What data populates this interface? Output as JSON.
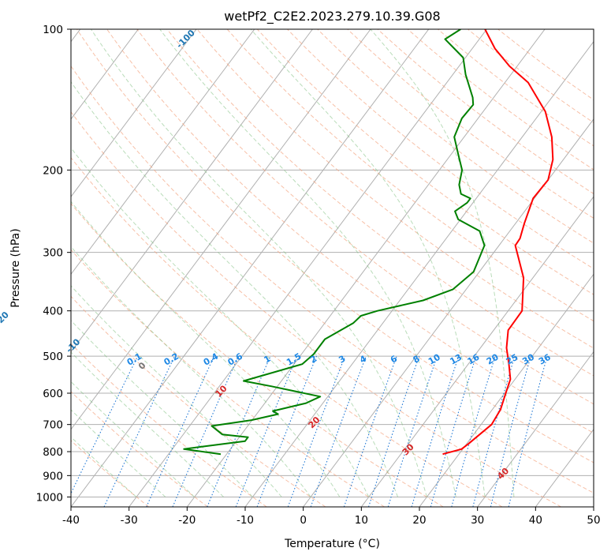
{
  "chart_data": {
    "type": "line",
    "title": "wetPf2_C2E2.2023.279.10.39.G08",
    "xlabel": "Temperature (°C)",
    "ylabel": "Pressure (hPa)",
    "xlim": [
      -40,
      50
    ],
    "ylim": [
      1050,
      100
    ],
    "y_scale": "log",
    "grid": true,
    "x_ticks": [
      -40,
      -30,
      -20,
      -10,
      0,
      10,
      20,
      30,
      40,
      50
    ],
    "y_ticks": [
      100,
      200,
      300,
      400,
      500,
      600,
      700,
      800,
      900,
      1000
    ],
    "series": [
      {
        "color": "#ff0000",
        "points": [
          [
            17.2,
            810
          ],
          [
            19.8,
            790
          ],
          [
            20.3,
            770
          ],
          [
            21.8,
            700
          ],
          [
            21.4,
            650
          ],
          [
            20.2,
            600
          ],
          [
            19.2,
            560
          ],
          [
            17.0,
            520
          ],
          [
            14.5,
            480
          ],
          [
            12.5,
            440
          ],
          [
            12.4,
            400
          ],
          [
            8.4,
            340
          ],
          [
            2.8,
            290
          ],
          [
            2.7,
            280
          ],
          [
            1.5,
            260
          ],
          [
            -0.2,
            230
          ],
          [
            0.0,
            210
          ],
          [
            -1.8,
            190
          ],
          [
            -4.9,
            170
          ],
          [
            -9.3,
            150
          ],
          [
            -16.0,
            130
          ],
          [
            -21.3,
            120
          ],
          [
            -26.1,
            110
          ],
          [
            -30.3,
            100
          ]
        ]
      },
      {
        "color": "#008000",
        "points": [
          [
            -21.0,
            810
          ],
          [
            -28.0,
            790
          ],
          [
            -25.0,
            780
          ],
          [
            -18.5,
            760
          ],
          [
            -18.5,
            745
          ],
          [
            -23.3,
            735
          ],
          [
            -26.2,
            705
          ],
          [
            -20.1,
            685
          ],
          [
            -16.3,
            665
          ],
          [
            -17.6,
            655
          ],
          [
            -12.9,
            630
          ],
          [
            -11.3,
            610
          ],
          [
            -21.0,
            580
          ],
          [
            -26.5,
            565
          ],
          [
            -18.6,
            520
          ],
          [
            -17.9,
            495
          ],
          [
            -17.9,
            460
          ],
          [
            -15.1,
            425
          ],
          [
            -14.7,
            410
          ],
          [
            -12.5,
            400
          ],
          [
            -6.0,
            380
          ],
          [
            -2.3,
            360
          ],
          [
            -1.0,
            330
          ],
          [
            -2.5,
            290
          ],
          [
            -5.2,
            270
          ],
          [
            -10.4,
            255
          ],
          [
            -12.0,
            245
          ],
          [
            -11.0,
            235
          ],
          [
            -11.0,
            230
          ],
          [
            -13.2,
            225
          ],
          [
            -14.7,
            215
          ],
          [
            -16.1,
            200
          ],
          [
            -18.8,
            185
          ],
          [
            -21.7,
            170
          ],
          [
            -22.8,
            155
          ],
          [
            -22.6,
            145
          ],
          [
            -23.6,
            140
          ],
          [
            -27.8,
            125
          ],
          [
            -30.4,
            115
          ],
          [
            -35.9,
            105
          ],
          [
            -34.5,
            100
          ]
        ]
      }
    ],
    "annotations": {
      "dry_adiabats": [
        "-100",
        "-90",
        "-80",
        "-70",
        "-60",
        "-50",
        "-40",
        "-30",
        "-20",
        "-10",
        "0",
        "10",
        "20",
        "30",
        "40"
      ],
      "mixing_ratios": [
        "0.1",
        "0.2",
        "0.4",
        "0.6",
        "1",
        "1.5",
        "2",
        "3",
        "4",
        "6",
        "8",
        "10",
        "13",
        "16",
        "20",
        "25",
        "30",
        "36"
      ]
    }
  }
}
